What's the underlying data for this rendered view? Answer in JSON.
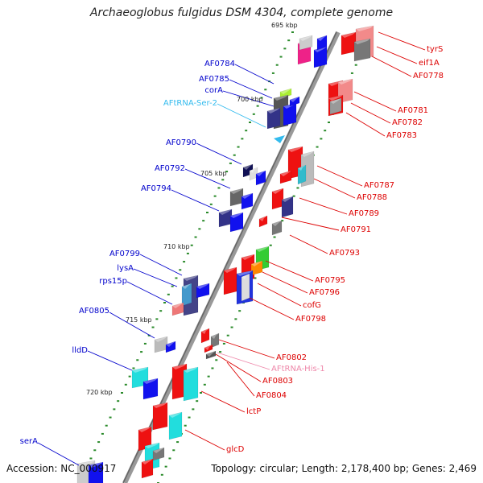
{
  "title": "Archaeoglobus fulgidus DSM 4304, complete genome",
  "accession": "Accession: NC_000917",
  "summary": "Topology: circular; Length: 2,178,400 bp; Genes: 2,469",
  "colors": {
    "left_labels": "#0000cc",
    "right_labels": "#dd0000",
    "trna_left": "#33bbee",
    "trna_right": "#ee88aa",
    "backbone": "#888888",
    "tick": "#228822"
  },
  "scale_labels": [
    "695 kbp",
    "700 kbp",
    "705 kbp",
    "710 kbp",
    "715 kbp",
    "720 kbp"
  ],
  "left_labels": [
    "AF0784",
    "AF0785",
    "corA",
    "AFtRNA-Ser-2",
    "AF0790",
    "AF0792",
    "AF0794",
    "AF0799",
    "lysA",
    "rps15p",
    "AF0805",
    "lldD",
    "serA"
  ],
  "right_labels": [
    "tyrS",
    "eif1A",
    "AF0778",
    "AF0781",
    "AF0782",
    "AF0783",
    "AF0787",
    "AF0788",
    "AF0789",
    "AF0791",
    "AF0793",
    "AF0795",
    "AF0796",
    "cofG",
    "AF0798",
    "AF0802",
    "AFtRNA-His-1",
    "AF0803",
    "AF0804",
    "lctP",
    "glcD"
  ]
}
